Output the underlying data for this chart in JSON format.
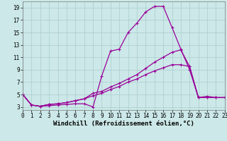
{
  "xlabel": "Windchill (Refroidissement éolien,°C)",
  "bg_color": "#cce8e8",
  "line_color": "#990099",
  "grid_color": "#aacccc",
  "x_ticks": [
    0,
    1,
    2,
    3,
    4,
    5,
    6,
    7,
    8,
    9,
    10,
    11,
    12,
    13,
    14,
    15,
    16,
    17,
    18,
    19,
    20,
    21,
    22,
    23
  ],
  "y_ticks": [
    3,
    5,
    7,
    9,
    11,
    13,
    15,
    17,
    19
  ],
  "xlim": [
    0,
    23
  ],
  "ylim": [
    2.5,
    20.0
  ],
  "series1_x": [
    0,
    1,
    2,
    3,
    4,
    5,
    6,
    7,
    8,
    9,
    10,
    11,
    12,
    13,
    14,
    15,
    16,
    17,
    18,
    19,
    20,
    21,
    22,
    23
  ],
  "series1_y": [
    5.0,
    3.3,
    3.1,
    3.2,
    3.3,
    3.4,
    3.5,
    3.5,
    3.0,
    8.0,
    12.0,
    12.3,
    15.0,
    16.5,
    18.3,
    19.2,
    19.2,
    15.8,
    12.3,
    9.0,
    4.5,
    4.7,
    4.5,
    4.5
  ],
  "series2_x": [
    0,
    1,
    2,
    3,
    4,
    5,
    6,
    7,
    8,
    9,
    10,
    11,
    12,
    13,
    14,
    15,
    16,
    17,
    18,
    19,
    20,
    21,
    22,
    23
  ],
  "series2_y": [
    5.0,
    3.3,
    3.1,
    3.4,
    3.5,
    3.7,
    4.0,
    4.3,
    5.2,
    5.5,
    6.2,
    6.8,
    7.5,
    8.2,
    9.2,
    10.2,
    11.0,
    11.8,
    12.2,
    9.5,
    4.5,
    4.5,
    4.5,
    4.5
  ],
  "series3_x": [
    0,
    1,
    2,
    3,
    4,
    5,
    6,
    7,
    8,
    9,
    10,
    11,
    12,
    13,
    14,
    15,
    16,
    17,
    18,
    19,
    20,
    21,
    22,
    23
  ],
  "series3_y": [
    5.0,
    3.3,
    3.1,
    3.4,
    3.5,
    3.7,
    4.0,
    4.3,
    4.8,
    5.2,
    5.8,
    6.3,
    7.0,
    7.5,
    8.2,
    8.8,
    9.3,
    9.8,
    9.8,
    9.5,
    4.5,
    4.5,
    4.5,
    4.5
  ],
  "marker": "+",
  "markersize": 3,
  "linewidth": 0.9,
  "tick_fontsize": 5.5,
  "label_fontsize": 6.5
}
